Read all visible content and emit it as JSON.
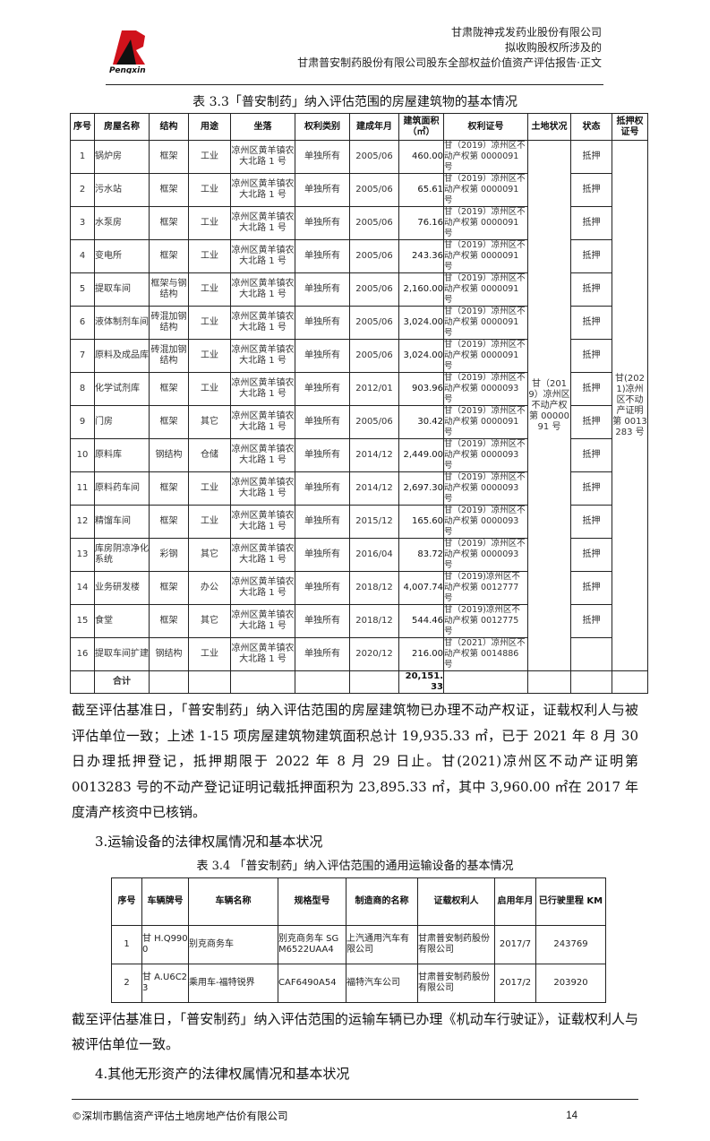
{
  "header": {
    "logo_text": "Pengxin",
    "lines": [
      "甘肃陇神戎发药业股份有限公司",
      "拟收购股权所涉及的",
      "甘肃普安制药股份有限公司股东全部权益价值资产评估报告·正文"
    ]
  },
  "table1": {
    "title": "表 3.3「普安制药」纳入评估范围的房屋建筑物的基本情况",
    "headers": [
      "序号",
      "房屋名称",
      "结构",
      "用途",
      "坐落",
      "权利类别",
      "建成年月",
      "建筑面积（㎡）",
      "权利证号",
      "土地状况",
      "状态",
      "抵押权证号"
    ],
    "rows": [
      {
        "no": "1",
        "name": "锅炉房",
        "structure": "框架",
        "use": "工业",
        "location": "凉州区黄羊镇农大北路 1 号",
        "right_type": "单独所有",
        "built": "2005/06",
        "area": "460.00",
        "cert": "甘（2019）凉州区不动产权第 0000091 号",
        "status": "抵押"
      },
      {
        "no": "2",
        "name": "污水站",
        "structure": "框架",
        "use": "工业",
        "location": "凉州区黄羊镇农大北路 1 号",
        "right_type": "单独所有",
        "built": "2005/06",
        "area": "65.61",
        "cert": "甘（2019）凉州区不动产权第 0000091 号",
        "status": "抵押"
      },
      {
        "no": "3",
        "name": "水泵房",
        "structure": "框架",
        "use": "工业",
        "location": "凉州区黄羊镇农大北路 1 号",
        "right_type": "单独所有",
        "built": "2005/06",
        "area": "76.16",
        "cert": "甘（2019）凉州区不动产权第 0000091 号",
        "status": "抵押"
      },
      {
        "no": "4",
        "name": "变电所",
        "structure": "框架",
        "use": "工业",
        "location": "凉州区黄羊镇农大北路 1 号",
        "right_type": "单独所有",
        "built": "2005/06",
        "area": "243.36",
        "cert": "甘（2019）凉州区不动产权第 0000091 号",
        "status": "抵押"
      },
      {
        "no": "5",
        "name": "提取车间",
        "structure": "框架与钢结构",
        "use": "工业",
        "location": "凉州区黄羊镇农大北路 1 号",
        "right_type": "单独所有",
        "built": "2005/06",
        "area": "2,160.00",
        "cert": "甘（2019）凉州区不动产权第 0000091 号",
        "status": "抵押"
      },
      {
        "no": "6",
        "name": "液体制剂车间",
        "structure": "砖混加钢结构",
        "use": "工业",
        "location": "凉州区黄羊镇农大北路 1 号",
        "right_type": "单独所有",
        "built": "2005/06",
        "area": "3,024.00",
        "cert": "甘（2019）凉州区不动产权第 0000091 号",
        "status": "抵押"
      },
      {
        "no": "7",
        "name": "原料及成品库",
        "structure": "砖混加钢结构",
        "use": "工业",
        "location": "凉州区黄羊镇农大北路 1 号",
        "right_type": "单独所有",
        "built": "2005/06",
        "area": "3,024.00",
        "cert": "甘（2019）凉州区不动产权第 0000091 号",
        "status": "抵押"
      },
      {
        "no": "8",
        "name": "化学试剂库",
        "structure": "框架",
        "use": "工业",
        "location": "凉州区黄羊镇农大北路 1 号",
        "right_type": "单独所有",
        "built": "2012/01",
        "area": "903.96",
        "cert": "甘（2019）凉州区不动产权第 0000093 号",
        "status": "抵押"
      },
      {
        "no": "9",
        "name": "门房",
        "structure": "框架",
        "use": "其它",
        "location": "凉州区黄羊镇农大北路 1 号",
        "right_type": "单独所有",
        "built": "2005/06",
        "area": "30.42",
        "cert": "甘（2019）凉州区不动产权第 0000091 号",
        "status": "抵押"
      },
      {
        "no": "10",
        "name": "原料库",
        "structure": "钢结构",
        "use": "仓储",
        "location": "凉州区黄羊镇农大北路 1 号",
        "right_type": "单独所有",
        "built": "2014/12",
        "area": "2,449.00",
        "cert": "甘（2019）凉州区不动产权第 0000093 号",
        "status": "抵押"
      },
      {
        "no": "11",
        "name": "原料药车间",
        "structure": "框架",
        "use": "工业",
        "location": "凉州区黄羊镇农大北路 1 号",
        "right_type": "单独所有",
        "built": "2014/12",
        "area": "2,697.30",
        "cert": "甘（2019）凉州区不动产权第 0000093 号",
        "status": "抵押"
      },
      {
        "no": "12",
        "name": "精馏车间",
        "structure": "框架",
        "use": "工业",
        "location": "凉州区黄羊镇农大北路 1 号",
        "right_type": "单独所有",
        "built": "2015/12",
        "area": "165.60",
        "cert": "甘（2019）凉州区不动产权第 0000093 号",
        "status": "抵押"
      },
      {
        "no": "13",
        "name": "库房阴凉净化系统",
        "structure": "彩钢",
        "use": "其它",
        "location": "凉州区黄羊镇农大北路 1 号",
        "right_type": "单独所有",
        "built": "2016/04",
        "area": "83.72",
        "cert": "甘（2019）凉州区不动产权第 0000093 号",
        "status": "抵押"
      },
      {
        "no": "14",
        "name": "业务研发楼",
        "structure": "框架",
        "use": "办公",
        "location": "凉州区黄羊镇农大北路 1 号",
        "right_type": "单独所有",
        "built": "2018/12",
        "area": "4,007.74",
        "cert": "甘（2019)凉州区不动产权第 0012777 号",
        "status": "抵押"
      },
      {
        "no": "15",
        "name": "食堂",
        "structure": "框架",
        "use": "其它",
        "location": "凉州区黄羊镇农大北路 1 号",
        "right_type": "单独所有",
        "built": "2018/12",
        "area": "544.46",
        "cert": "甘（2019)凉州区不动产权第 0012775 号",
        "status": "抵押"
      },
      {
        "no": "16",
        "name": "提取车间扩建",
        "structure": "钢结构",
        "use": "工业",
        "location": "凉州区黄羊镇农大北路 1 号",
        "right_type": "单独所有",
        "built": "2020/12",
        "area": "216.00",
        "cert": "甘（2021）凉州区不动产权第 0014886 号",
        "status": ""
      }
    ],
    "land_status": "甘（2019）凉州区不动产权第 0000091 号",
    "mortgage_cert": "甘(2021)凉州区不动产证明第 0013283 号",
    "total_label": "合计",
    "total_area": "20,151.33"
  },
  "paragraph1": "截至评估基准日，「普安制药」纳入评估范围的房屋建筑物已办理不动产权证，证载权利人与被评估单位一致；上述 1-15 项房屋建筑物建筑面积总计 19,935.33 ㎡，已于 2021 年 8 月 30 日办理抵押登记，抵押期限于 2022 年 8 月 29 日止。甘(2021)凉州区不动产证明第 0013283 号的不动产登记证明记载抵押面积为 23,895.33 ㎡，其中 3,960.00 ㎡在 2017 年度清产核资中已核销。",
  "heading3": "3.运输设备的法律权属情况和基本状况",
  "table2": {
    "title": "表 3.4 「普安制药」纳入评估范围的通用运输设备的基本情况",
    "headers": [
      "序号",
      "车辆牌号",
      "车辆名称",
      "规格型号",
      "制造商的名称",
      "证载权利人",
      "启用年月",
      "已行驶里程 KM"
    ],
    "rows": [
      {
        "no": "1",
        "plate": "甘 H.Q9900",
        "name": "别克商务车",
        "model": "别克商务车 SGM6522UAA4",
        "maker": "上汽通用汽车有限公司",
        "owner": "甘肃普安制药股份有限公司",
        "start": "2017/7",
        "km": "243769"
      },
      {
        "no": "2",
        "plate": "甘 A.U6C23",
        "name": "乘用车-福特锐界",
        "model": "CAF6490A54",
        "maker": "福特汽车公司",
        "owner": "甘肃普安制药股份有限公司",
        "start": "2017/2",
        "km": "203920"
      }
    ]
  },
  "paragraph2": "截至评估基准日，「普安制药」纳入评估范围的运输车辆已办理《机动车行驶证》，证载权利人与被评估单位一致。",
  "heading4": "4.其他无形资产的法律权属情况和基本状况",
  "footer": {
    "company": "©深圳市鹏信资产评估土地房地产估价有限公司",
    "page": "14"
  },
  "colors": {
    "logo_red": "#d0121b",
    "logo_black": "#111111"
  }
}
